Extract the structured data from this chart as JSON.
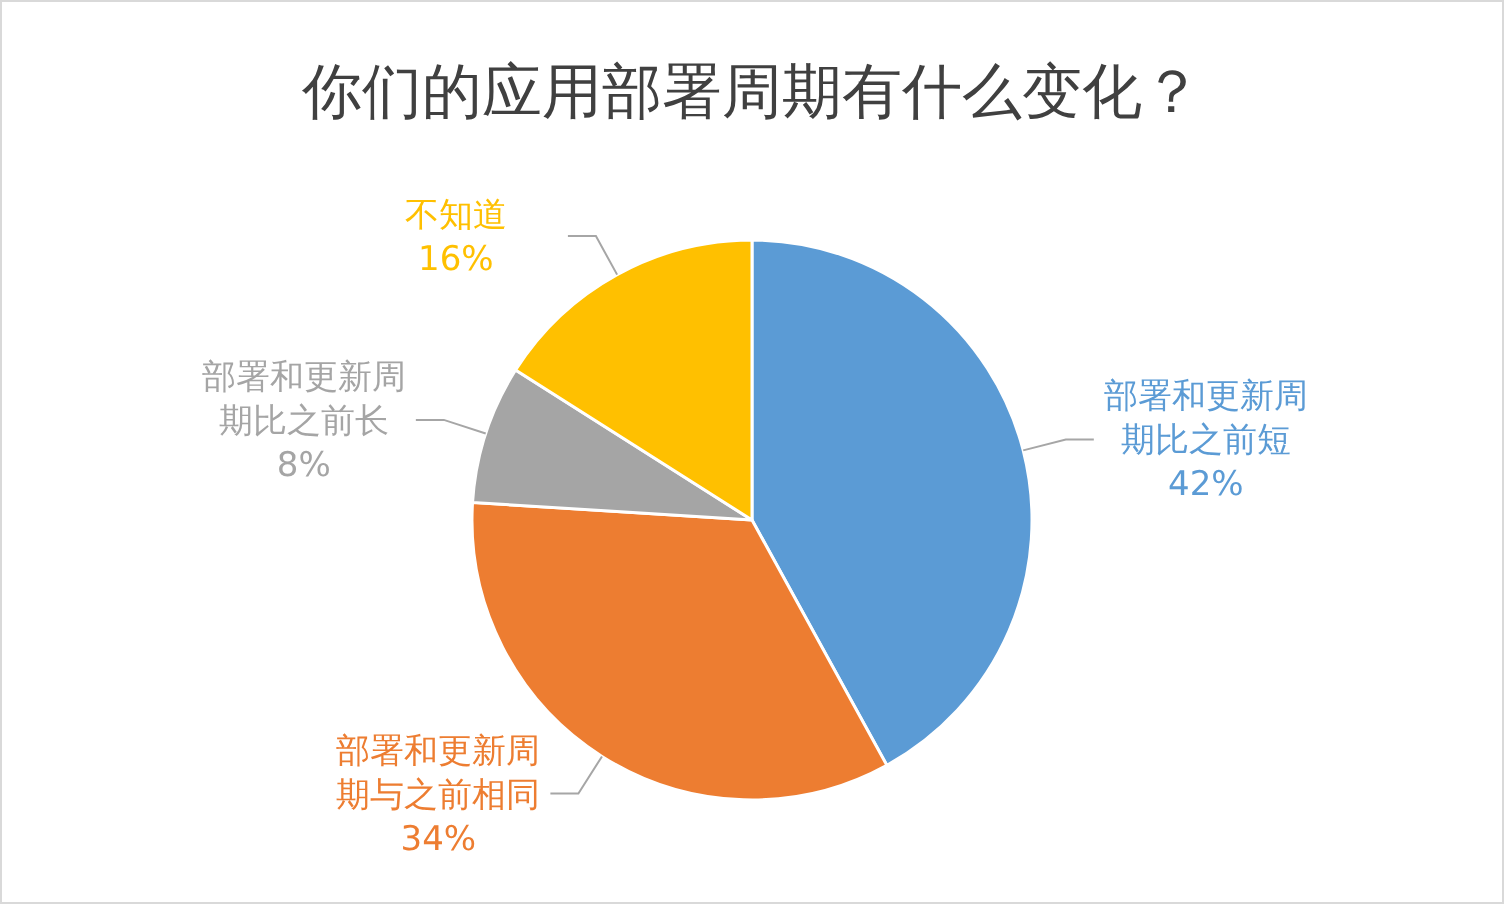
{
  "chart_data": {
    "type": "pie",
    "title": "你们的应用部署周期有什么变化？",
    "categories": [
      "部署和更新周期比之前短",
      "部署和更新周期与之前相同",
      "部署和更新周期比之前长",
      "不知道"
    ],
    "values": [
      42,
      34,
      8,
      16
    ],
    "colors": [
      "#5b9bd5",
      "#ed7d31",
      "#a5a5a5",
      "#ffc000"
    ],
    "value_labels": [
      "42%",
      "34%",
      "8%",
      "16%"
    ]
  }
}
